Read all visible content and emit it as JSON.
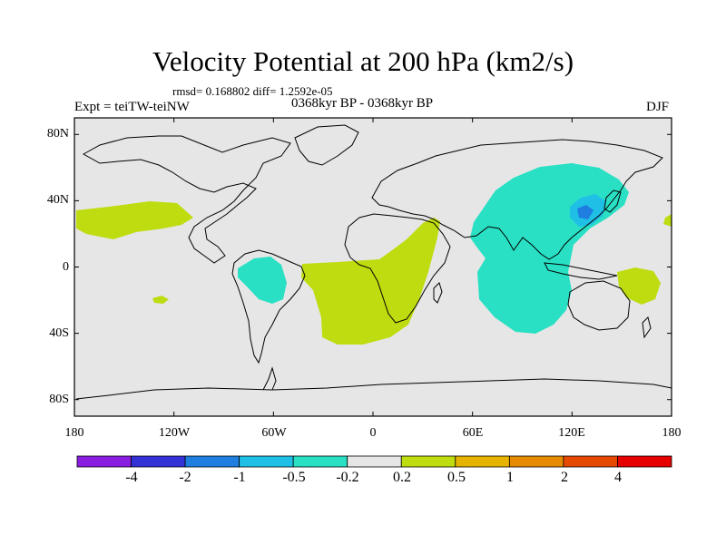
{
  "title": "Velocity Potential at 200 hPa (km2/s)",
  "stats": "rmsd= 0.168802 diff= 1.2592e-05",
  "experiment": "Expt = teiTW-teiNW",
  "period": "0368kyr BP - 0368kyr BP",
  "season": "DJF",
  "lat_labels": [
    "80N",
    "40N",
    "0",
    "40S",
    "80S"
  ],
  "lat_values": [
    80,
    40,
    0,
    -40,
    -80
  ],
  "lon_labels": [
    "180",
    "120W",
    "60W",
    "0",
    "60E",
    "120E",
    "180"
  ],
  "lon_values": [
    -180,
    -120,
    -60,
    0,
    60,
    120,
    180
  ],
  "colorbar": {
    "labels": [
      "-4",
      "-2",
      "-1",
      "-0.5",
      "-0.2",
      "0.2",
      "0.5",
      "1",
      "2",
      "4"
    ],
    "colors": [
      "#8a1ee0",
      "#3432d6",
      "#1f7ee0",
      "#1fbfe6",
      "#29e0c4",
      "#e6e6e6",
      "#bfdc10",
      "#e6b400",
      "#e68a00",
      "#e64a00",
      "#e60000"
    ]
  },
  "field_colors": {
    "background": "#e6e6e6",
    "positive_weak": "#bfdc10",
    "negative_weak": "#29e0c4",
    "negative_mid": "#1fbfe6",
    "negative_strong": "#1f7ee0"
  }
}
